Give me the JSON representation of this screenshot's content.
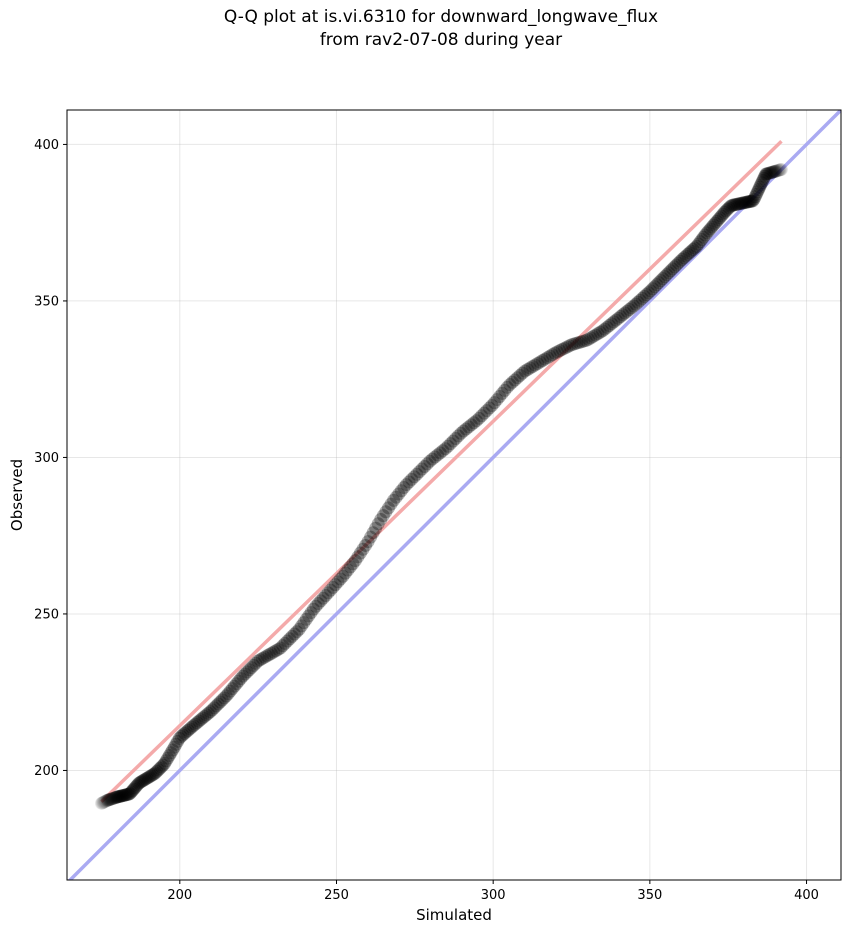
{
  "chart_data": {
    "type": "scatter",
    "title": "Q-Q plot at is.vi.6310 for downward_longwave_flux\nfrom rav2-07-08 during year",
    "xlabel": "Simulated",
    "ylabel": "Observed",
    "xlim": [
      164,
      411
    ],
    "ylim": [
      165,
      411
    ],
    "xticks": [
      200,
      250,
      300,
      350,
      400
    ],
    "yticks": [
      200,
      250,
      300,
      350,
      400
    ],
    "grid": true,
    "quantile_curve": [
      [
        175,
        189.5
      ],
      [
        177,
        190.5
      ],
      [
        180,
        191.5
      ],
      [
        184,
        192.5
      ],
      [
        187,
        196
      ],
      [
        192,
        199
      ],
      [
        195,
        202
      ],
      [
        198,
        207
      ],
      [
        200,
        210.5
      ],
      [
        204,
        214
      ],
      [
        210,
        219
      ],
      [
        215,
        224
      ],
      [
        220,
        230
      ],
      [
        225,
        235
      ],
      [
        232,
        239
      ],
      [
        238,
        245
      ],
      [
        243,
        252
      ],
      [
        248,
        257.5
      ],
      [
        252,
        262
      ],
      [
        256,
        267
      ],
      [
        260,
        273
      ],
      [
        264,
        280
      ],
      [
        268,
        286
      ],
      [
        272,
        291
      ],
      [
        276,
        295
      ],
      [
        280,
        299
      ],
      [
        285,
        303
      ],
      [
        290,
        308
      ],
      [
        295,
        312
      ],
      [
        300,
        317
      ],
      [
        305,
        323
      ],
      [
        310,
        327.5
      ],
      [
        315,
        330.5
      ],
      [
        320,
        333.5
      ],
      [
        325,
        336
      ],
      [
        330,
        337.5
      ],
      [
        335,
        340.5
      ],
      [
        340,
        344.5
      ],
      [
        345,
        348.5
      ],
      [
        350,
        353
      ],
      [
        355,
        358
      ],
      [
        360,
        363
      ],
      [
        365,
        367.5
      ],
      [
        368,
        371.5
      ],
      [
        371,
        375
      ],
      [
        374,
        378.5
      ],
      [
        376,
        380.5
      ],
      [
        383,
        382
      ],
      [
        387,
        390.5
      ],
      [
        392,
        392
      ]
    ],
    "reference_lines": [
      {
        "name": "1:1",
        "color": "#aaaaf2",
        "points": [
          [
            164,
            164
          ],
          [
            411,
            411
          ]
        ]
      },
      {
        "name": "fit",
        "color": "#f4aaaa",
        "points": [
          [
            175,
            190
          ],
          [
            392,
            401
          ]
        ]
      }
    ],
    "marker_color": "#000000"
  }
}
